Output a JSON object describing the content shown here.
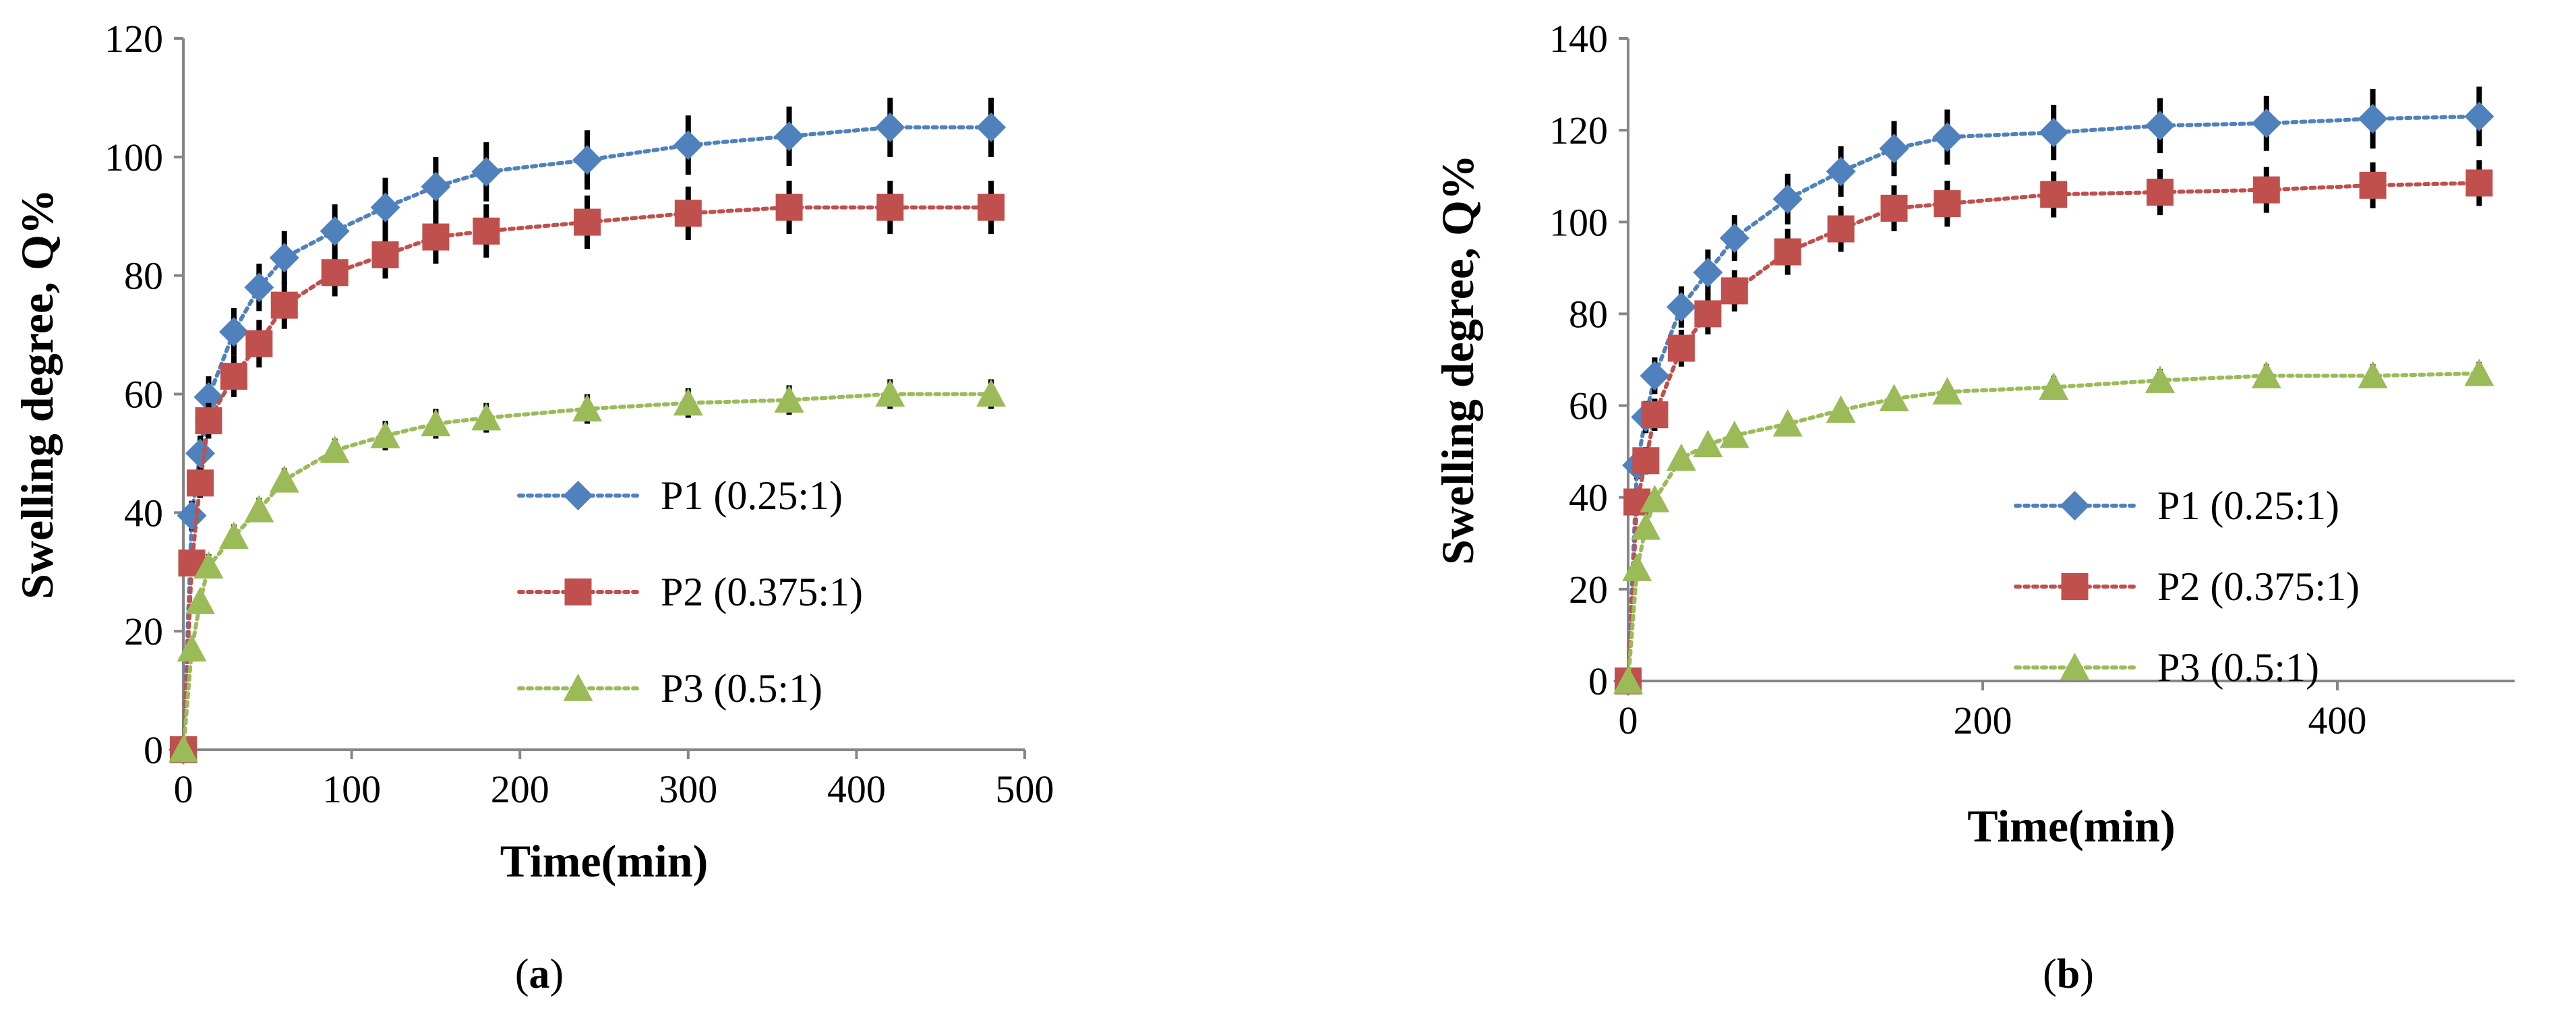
{
  "chart_data": [
    {
      "id": "a",
      "type": "line",
      "caption": "(a)",
      "caption_letter": "a",
      "xlabel": "Time(min)",
      "ylabel": "Swelling degree, Q%",
      "xlim": [
        0,
        500
      ],
      "ylim": [
        0,
        120
      ],
      "xticks": [
        0,
        100,
        200,
        300,
        400,
        500
      ],
      "yticks": [
        0,
        20,
        40,
        60,
        80,
        100,
        120
      ],
      "legend_position": "center-right",
      "x": [
        0,
        5,
        10,
        15,
        30,
        45,
        60,
        90,
        120,
        150,
        180,
        240,
        300,
        360,
        420,
        480
      ],
      "series": [
        {
          "name": "P1 (0.25:1)",
          "marker": "diamond",
          "color": "#4F81BD",
          "values": [
            0,
            39.5,
            50,
            59.5,
            70.5,
            78,
            83,
            87.5,
            91.5,
            95,
            97.5,
            99.5,
            102,
            103.5,
            105,
            105
          ],
          "error": [
            0,
            2.5,
            3,
            3.5,
            4,
            4,
            4.5,
            4.5,
            5,
            5,
            5,
            5,
            5,
            5,
            5,
            5
          ]
        },
        {
          "name": "P2 (0.375:1)",
          "marker": "square",
          "color": "#C0504D",
          "values": [
            0,
            31.5,
            45,
            55.5,
            63,
            68.5,
            75,
            80.5,
            83.5,
            86.5,
            87.5,
            89,
            90.5,
            91.5,
            91.5,
            91.5
          ],
          "error": [
            0,
            2,
            2.5,
            3,
            3.5,
            4,
            4,
            4,
            4,
            4.5,
            4.5,
            4.5,
            4.5,
            4.5,
            4.5,
            4.5
          ]
        },
        {
          "name": "P3 (0.5:1)",
          "marker": "triangle",
          "color": "#9BBB59",
          "values": [
            0,
            17,
            25,
            31,
            36,
            40.5,
            45.5,
            50.5,
            53,
            55,
            56,
            57.5,
            58.5,
            59,
            60,
            60
          ],
          "error": [
            0,
            1,
            1.5,
            2,
            2,
            2,
            2,
            2,
            2.5,
            2.5,
            2.5,
            2.5,
            2.5,
            2.5,
            2.5,
            2.5
          ]
        }
      ]
    },
    {
      "id": "b",
      "type": "line",
      "caption": "(b)",
      "caption_letter": "b",
      "xlabel": "Time(min)",
      "ylabel": "Swelling degree, Q%",
      "xlim": [
        0,
        500
      ],
      "ylim": [
        0,
        140
      ],
      "xticks": [
        0,
        200,
        400
      ],
      "yticks": [
        0,
        20,
        40,
        60,
        80,
        100,
        120,
        140
      ],
      "legend_position": "lower-right",
      "x": [
        0,
        5,
        10,
        15,
        30,
        45,
        60,
        90,
        120,
        150,
        180,
        240,
        300,
        360,
        420,
        480
      ],
      "series": [
        {
          "name": "P1 (0.25:1)",
          "marker": "diamond",
          "color": "#4F81BD",
          "values": [
            0,
            47,
            57.5,
            66.5,
            81.5,
            89,
            96.5,
            105,
            111,
            116,
            118.5,
            119.5,
            121,
            121.5,
            122.5,
            123
          ],
          "error": [
            0,
            3,
            3.5,
            4,
            4.5,
            5,
            5,
            5.5,
            5.5,
            6,
            6,
            6,
            6,
            6,
            6.5,
            6.5
          ]
        },
        {
          "name": "P2 (0.375:1)",
          "marker": "square",
          "color": "#C0504D",
          "values": [
            0,
            39,
            48,
            58,
            72.5,
            80,
            85,
            93.5,
            98.5,
            103,
            104,
            106,
            106.5,
            107,
            108,
            108.5
          ],
          "error": [
            0,
            2.5,
            3,
            3.5,
            4,
            4.5,
            4.5,
            5,
            5,
            5,
            5,
            5,
            5,
            5,
            5,
            5
          ]
        },
        {
          "name": "P3 (0.5:1)",
          "marker": "triangle",
          "color": "#9BBB59",
          "values": [
            0,
            24.5,
            33.5,
            39.5,
            48.5,
            51.5,
            53.5,
            56,
            59,
            61.5,
            63,
            64,
            65.5,
            66.5,
            66.5,
            67
          ],
          "error": [
            0,
            1.5,
            2,
            2,
            2,
            2,
            2,
            2,
            2,
            2,
            2,
            2.5,
            2.5,
            2.5,
            2.5,
            2.5
          ]
        }
      ]
    }
  ]
}
